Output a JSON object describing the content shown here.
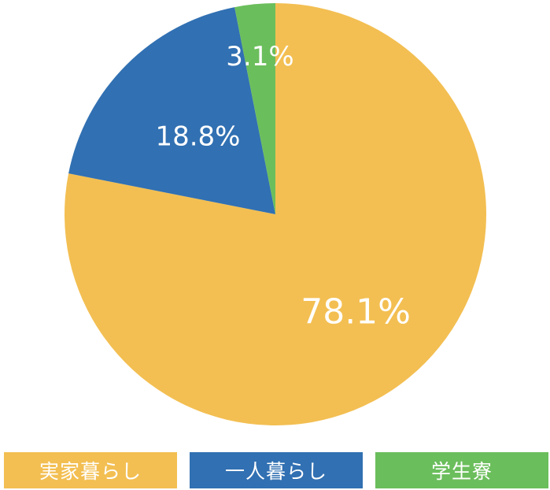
{
  "chart_data": {
    "type": "pie",
    "categories": [
      "実家暮らし",
      "一人暮らし",
      "学生寮"
    ],
    "values": [
      78.1,
      18.8,
      3.1
    ],
    "data_labels": [
      "78.1%",
      "18.8%",
      "3.1%"
    ],
    "colors": [
      "#F3BF52",
      "#3170B2",
      "#6BBE5C"
    ],
    "start": "12 o'clock",
    "direction": "clockwise",
    "legend_position": "bottom"
  }
}
